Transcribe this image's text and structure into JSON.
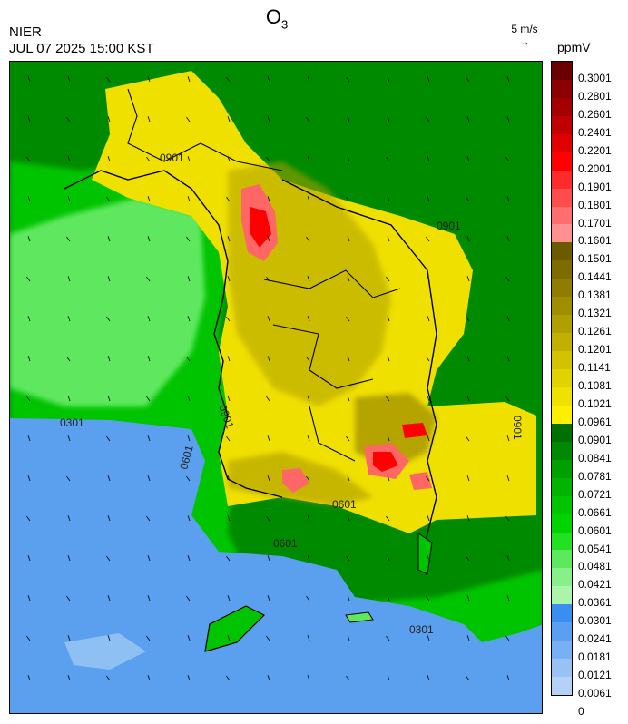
{
  "title": {
    "main": "O",
    "subscript": "3"
  },
  "agency": "NIER",
  "datetime": "JUL 07 2025 15:00 KST",
  "wind_reference": {
    "label": "5 m/s",
    "arrow": "→"
  },
  "units": "ppmV",
  "legend": {
    "ticks": [
      "0.3001",
      "0.2801",
      "0.2601",
      "0.2401",
      "0.2201",
      "0.2001",
      "0.1901",
      "0.1801",
      "0.1701",
      "0.1601",
      "0.1501",
      "0.1441",
      "0.1381",
      "0.1321",
      "0.1261",
      "0.1201",
      "0.1141",
      "0.1081",
      "0.1021",
      "0.0961",
      "0.0901",
      "0.0841",
      "0.0781",
      "0.0721",
      "0.0661",
      "0.0601",
      "0.0541",
      "0.0481",
      "0.0421",
      "0.0361",
      "0.0301",
      "0.0241",
      "0.0181",
      "0.0121",
      "0.0061",
      "0"
    ],
    "colors": [
      "#6b0000",
      "#8b0000",
      "#a50000",
      "#c00000",
      "#e00000",
      "#ff0000",
      "#ff2a2a",
      "#ff4d4d",
      "#ff6f6f",
      "#ff9090",
      "#6b5a00",
      "#7d6c00",
      "#8e7d00",
      "#9f8e00",
      "#b09f00",
      "#c1b000",
      "#d2c200",
      "#e0d300",
      "#efe200",
      "#fff000",
      "#007000",
      "#008800",
      "#00a000",
      "#00b400",
      "#00c400",
      "#00d400",
      "#22e022",
      "#5ee85e",
      "#88f088",
      "#aaf5aa",
      "#3a8ef0",
      "#5a9ff2",
      "#78b0f4",
      "#98c2f6",
      "#b4d2f8"
    ],
    "contour_labels": [
      "0901",
      "0601",
      "0301"
    ]
  },
  "map_colors": {
    "sea_low": "#5aa0ee",
    "sea_light": "#8ec0f4",
    "green_dark": "#008a00",
    "green_mid": "#00c400",
    "green_light": "#5ee85e",
    "yellow": "#f0e000",
    "olive": "#b0a000",
    "red": "#ff6666",
    "red_core": "#ff0000"
  }
}
